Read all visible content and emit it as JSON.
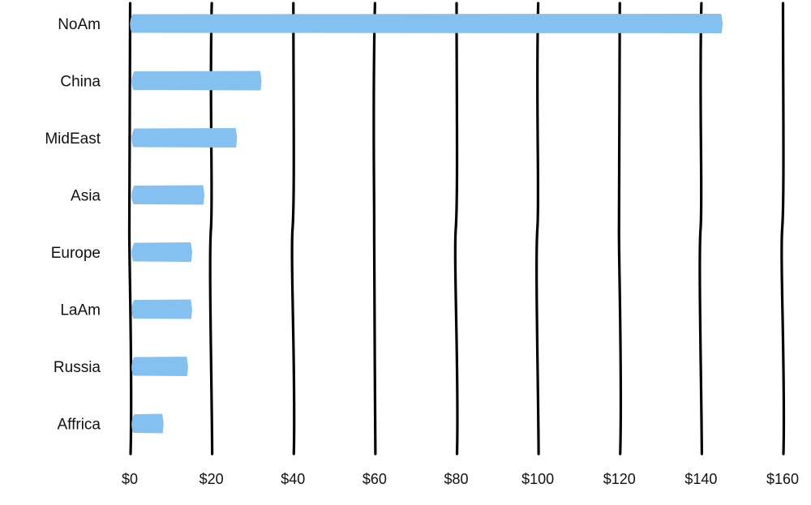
{
  "chart_data": {
    "type": "bar",
    "orientation": "horizontal",
    "title": "",
    "xlabel": "",
    "ylabel": "",
    "categories": [
      "NoAm",
      "China",
      "MidEast",
      "Asia",
      "Europe",
      "LaAm",
      "Russia",
      "Affrica"
    ],
    "values": [
      145,
      32,
      26,
      18,
      15,
      15,
      14,
      8
    ],
    "xlim": [
      0,
      160
    ],
    "xticks": [
      0,
      20,
      40,
      60,
      80,
      100,
      120,
      140,
      160
    ],
    "xtick_labels": [
      "$0",
      "$20",
      "$40",
      "$60",
      "$80",
      "$100",
      "$120",
      "$140",
      "$160"
    ],
    "grid": true,
    "legend": "none",
    "bar_color": "#85c1f0",
    "grid_color": "#000000",
    "style": "hand-drawn"
  }
}
